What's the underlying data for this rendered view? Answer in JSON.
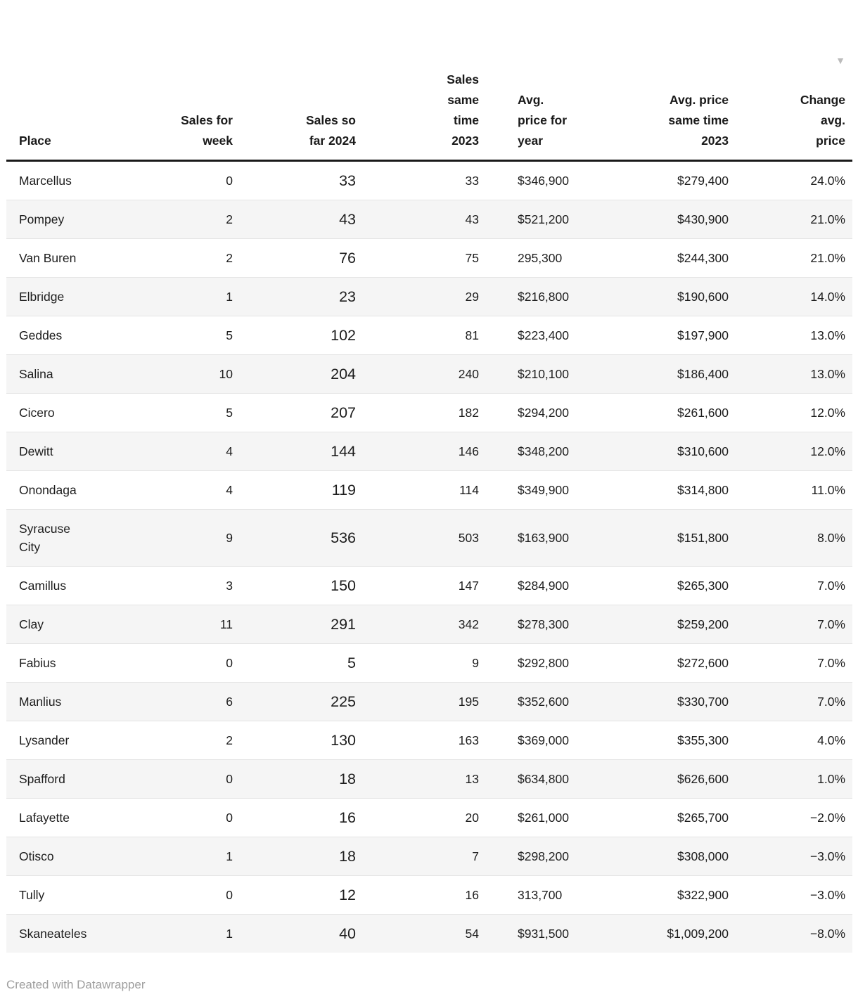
{
  "chart_data": {
    "type": "table",
    "columns": [
      {
        "key": "place",
        "label": "Place",
        "align": "left"
      },
      {
        "key": "sales_for_week",
        "label": "Sales for\nweek",
        "align": "right"
      },
      {
        "key": "sales_so_far_2024",
        "label": "Sales so\nfar 2024",
        "align": "right",
        "emphasized": true
      },
      {
        "key": "sales_same_time_2023",
        "label": "Sales\nsame\ntime\n2023",
        "align": "right"
      },
      {
        "key": "avg_price_for_year",
        "label": "Avg.\nprice for\nyear",
        "align": "left"
      },
      {
        "key": "avg_price_same_time_2023",
        "label": "Avg. price\nsame time\n2023",
        "align": "right"
      },
      {
        "key": "change_avg_price",
        "label": "Change\navg.\nprice",
        "align": "right",
        "sorted": "desc"
      }
    ],
    "rows": [
      [
        "Marcellus",
        "0",
        "33",
        "33",
        "$346,900",
        "$279,400",
        "24.0%"
      ],
      [
        "Pompey",
        "2",
        "43",
        "43",
        "$521,200",
        "$430,900",
        "21.0%"
      ],
      [
        "Van Buren",
        "2",
        "76",
        "75",
        "295,300",
        "$244,300",
        "21.0%"
      ],
      [
        "Elbridge",
        "1",
        "23",
        "29",
        "$216,800",
        "$190,600",
        "14.0%"
      ],
      [
        "Geddes",
        "5",
        "102",
        "81",
        "$223,400",
        "$197,900",
        "13.0%"
      ],
      [
        "Salina",
        "10",
        "204",
        "240",
        "$210,100",
        "$186,400",
        "13.0%"
      ],
      [
        "Cicero",
        "5",
        "207",
        "182",
        "$294,200",
        "$261,600",
        "12.0%"
      ],
      [
        "Dewitt",
        "4",
        "144",
        "146",
        "$348,200",
        "$310,600",
        "12.0%"
      ],
      [
        "Onondaga",
        "4",
        "119",
        "114",
        "$349,900",
        "$314,800",
        "11.0%"
      ],
      [
        "Syracuse\nCity",
        "9",
        "536",
        "503",
        "$163,900",
        "$151,800",
        "8.0%"
      ],
      [
        "Camillus",
        "3",
        "150",
        "147",
        "$284,900",
        "$265,300",
        "7.0%"
      ],
      [
        "Clay",
        "11",
        "291",
        "342",
        "$278,300",
        "$259,200",
        "7.0%"
      ],
      [
        "Fabius",
        "0",
        "5",
        "9",
        "$292,800",
        "$272,600",
        "7.0%"
      ],
      [
        "Manlius",
        "6",
        "225",
        "195",
        "$352,600",
        "$330,700",
        "7.0%"
      ],
      [
        "Lysander",
        "2",
        "130",
        "163",
        "$369,000",
        "$355,300",
        "4.0%"
      ],
      [
        "Spafford",
        "0",
        "18",
        "13",
        "$634,800",
        "$626,600",
        "1.0%"
      ],
      [
        "Lafayette",
        "0",
        "16",
        "20",
        "$261,000",
        "$265,700",
        "−2.0%"
      ],
      [
        "Otisco",
        "1",
        "18",
        "7",
        "$298,200",
        "$308,000",
        "−3.0%"
      ],
      [
        "Tully",
        "0",
        "12",
        "16",
        "313,700",
        "$322,900",
        "−3.0%"
      ],
      [
        "Skaneateles",
        "1",
        "40",
        "54",
        "$931,500",
        "$1,009,200",
        "−8.0%"
      ]
    ]
  },
  "sort_indicator": {
    "icon": "▼",
    "column": "Change avg. price",
    "direction": "desc"
  },
  "footer": {
    "credit": "Created with Datawrapper"
  },
  "colors": {
    "text": "#1d1d1d",
    "header_text": "#1a1a1a",
    "header_rule": "#1a1a1a",
    "row_alt_bg": "#f5f5f5",
    "row_border": "#e4e4e4",
    "sort_icon": "#bcbcbc",
    "credit_text": "#9e9e9e",
    "background": "#ffffff"
  }
}
